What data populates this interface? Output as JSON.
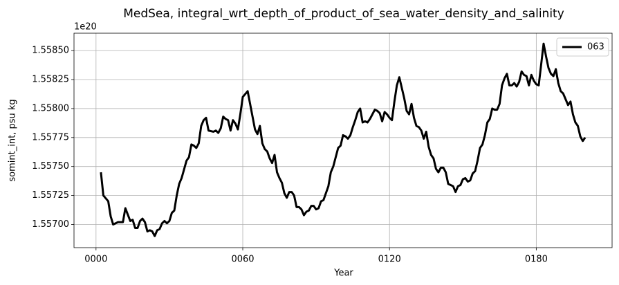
{
  "chart_data": {
    "type": "line",
    "title": "MedSea, integral_wrt_depth_of_product_of_sea_water_density_and_salinity",
    "x_label": "Year",
    "y_label": "somint_int, psu kg",
    "y_offset_label": "1e20",
    "grid": true,
    "legend_position": "upper right",
    "xlim": [
      -9,
      211
    ],
    "ylim": [
      1.5568,
      1.55865
    ],
    "xticks": [
      {
        "value": 0,
        "label": "0000"
      },
      {
        "value": 60,
        "label": "0060"
      },
      {
        "value": 120,
        "label": "0120"
      },
      {
        "value": 180,
        "label": "0180"
      }
    ],
    "yticks": [
      {
        "value": 1.557,
        "label": "1.55700"
      },
      {
        "value": 1.55725,
        "label": "1.55725"
      },
      {
        "value": 1.5575,
        "label": "1.55750"
      },
      {
        "value": 1.55775,
        "label": "1.55775"
      },
      {
        "value": 1.558,
        "label": "1.55800"
      },
      {
        "value": 1.55825,
        "label": "1.55825"
      },
      {
        "value": 1.5585,
        "label": "1.55850"
      }
    ],
    "x": [
      2,
      3,
      5,
      6,
      7,
      9,
      11,
      12,
      14,
      15,
      16,
      17,
      18,
      19,
      20,
      21,
      22,
      23,
      24,
      25,
      26,
      27,
      28,
      29,
      30,
      31,
      32,
      33,
      34,
      35,
      37,
      38,
      39,
      40,
      41,
      42,
      43,
      44,
      45,
      46,
      48,
      49,
      50,
      51,
      52,
      53,
      54,
      55,
      56,
      57,
      58,
      59,
      60,
      62,
      63,
      64,
      65,
      66,
      67,
      68,
      69,
      70,
      71,
      72,
      73,
      74,
      75,
      76,
      77,
      78,
      79,
      80,
      81,
      82,
      83,
      84,
      85,
      86,
      87,
      88,
      89,
      90,
      91,
      92,
      93,
      95,
      96,
      97,
      98,
      99,
      100,
      101,
      102,
      103,
      104,
      105,
      106,
      107,
      108,
      109,
      110,
      111,
      112,
      114,
      115,
      116,
      117,
      118,
      119,
      120,
      121,
      122,
      123,
      124,
      125,
      126,
      127,
      128,
      129,
      130,
      131,
      132,
      133,
      134,
      135,
      136,
      137,
      138,
      139,
      140,
      141,
      142,
      143,
      144,
      145,
      146,
      147,
      148,
      149,
      150,
      151,
      152,
      153,
      154,
      155,
      156,
      157,
      158,
      159,
      160,
      161,
      162,
      163,
      164,
      165,
      166,
      167,
      168,
      169,
      170,
      171,
      172,
      173,
      174,
      175,
      176,
      177,
      178,
      179,
      180,
      181,
      182,
      183,
      184,
      185,
      186,
      187,
      188,
      189,
      190,
      191,
      192,
      193,
      194,
      195,
      196,
      197,
      198,
      199,
      200
    ],
    "series": [
      {
        "name": "063",
        "color": "#000000",
        "values": [
          1.55745,
          1.55725,
          1.5572,
          1.55707,
          1.557,
          1.55702,
          1.55702,
          1.55714,
          1.55703,
          1.55704,
          1.55697,
          1.55697,
          1.55703,
          1.55705,
          1.55702,
          1.55694,
          1.55695,
          1.55694,
          1.5569,
          1.55695,
          1.55696,
          1.55701,
          1.55703,
          1.55701,
          1.55703,
          1.5571,
          1.55712,
          1.55725,
          1.55735,
          1.5574,
          1.55755,
          1.55758,
          1.55769,
          1.55768,
          1.55766,
          1.5577,
          1.55785,
          1.5579,
          1.55792,
          1.55781,
          1.5578,
          1.55781,
          1.55779,
          1.55783,
          1.55793,
          1.55791,
          1.5579,
          1.55781,
          1.5579,
          1.55787,
          1.55782,
          1.55795,
          1.5581,
          1.55815,
          1.55804,
          1.55793,
          1.55782,
          1.55778,
          1.55785,
          1.5577,
          1.55765,
          1.55763,
          1.55757,
          1.55753,
          1.5576,
          1.55745,
          1.5574,
          1.55736,
          1.55727,
          1.55723,
          1.55728,
          1.55728,
          1.55725,
          1.55715,
          1.55715,
          1.55713,
          1.55708,
          1.55711,
          1.55712,
          1.55716,
          1.55716,
          1.55713,
          1.55714,
          1.5572,
          1.55721,
          1.55733,
          1.55745,
          1.5575,
          1.55758,
          1.55766,
          1.55768,
          1.55777,
          1.55776,
          1.55774,
          1.55777,
          1.55784,
          1.5579,
          1.55797,
          1.558,
          1.55788,
          1.55789,
          1.55788,
          1.55791,
          1.55799,
          1.55798,
          1.55796,
          1.55789,
          1.55797,
          1.55795,
          1.55792,
          1.5579,
          1.55806,
          1.5582,
          1.55827,
          1.55818,
          1.55809,
          1.55798,
          1.55795,
          1.55804,
          1.55792,
          1.55785,
          1.55784,
          1.55781,
          1.55774,
          1.5578,
          1.55767,
          1.5576,
          1.55757,
          1.55748,
          1.55745,
          1.55749,
          1.55749,
          1.55745,
          1.55735,
          1.55734,
          1.55733,
          1.55728,
          1.55733,
          1.55734,
          1.55739,
          1.5574,
          1.55737,
          1.55738,
          1.55744,
          1.55746,
          1.55755,
          1.55766,
          1.55769,
          1.55777,
          1.55788,
          1.55791,
          1.558,
          1.55799,
          1.55799,
          1.55804,
          1.5582,
          1.55826,
          1.5583,
          1.5582,
          1.5582,
          1.55822,
          1.55819,
          1.55823,
          1.55832,
          1.55829,
          1.55828,
          1.5582,
          1.55829,
          1.55824,
          1.55821,
          1.5582,
          1.55838,
          1.55856,
          1.55845,
          1.55835,
          1.5583,
          1.55828,
          1.55834,
          1.55822,
          1.55815,
          1.55813,
          1.55808,
          1.55803,
          1.55806,
          1.55795,
          1.55788,
          1.55785,
          1.55776,
          1.55772,
          1.55775
        ]
      }
    ]
  }
}
